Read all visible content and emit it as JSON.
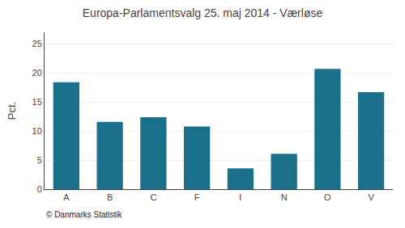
{
  "chart_data": {
    "type": "bar",
    "title": "Europa-Parlamentsvalg 25. maj 2014 - Værløse",
    "categories": [
      "A",
      "B",
      "C",
      "F",
      "I",
      "N",
      "O",
      "V"
    ],
    "values": [
      18.4,
      11.6,
      12.4,
      10.8,
      3.6,
      6.1,
      20.7,
      16.7
    ],
    "color": "#1a6f8a",
    "ylabel": "Pct.",
    "ylim": [
      0,
      27
    ],
    "yticks": [
      0,
      5,
      10,
      15,
      20,
      25
    ],
    "grid": true,
    "annotations": [
      "© Danmarks Statistik"
    ]
  }
}
